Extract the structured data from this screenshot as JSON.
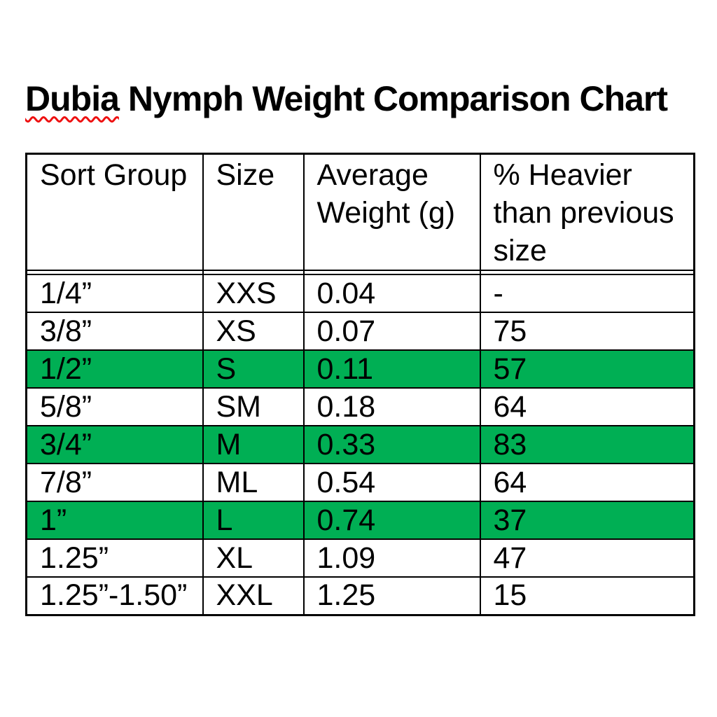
{
  "title": {
    "misspelled_word": "Dubia",
    "rest": "Nymph Weight Comparison Chart"
  },
  "table": {
    "columns": [
      "Sort Group",
      "Size",
      "Average Weight (g)",
      "% Heavier than previous size"
    ],
    "rows": [
      {
        "sort_group": "1/4”",
        "size": "XXS",
        "avg_weight": "0.04",
        "pct_heavier": "-",
        "highlighted": false
      },
      {
        "sort_group": "3/8”",
        "size": "XS",
        "avg_weight": "0.07",
        "pct_heavier": "75",
        "highlighted": false
      },
      {
        "sort_group": "1/2”",
        "size": "S",
        "avg_weight": "0.11",
        "pct_heavier": "57",
        "highlighted": true
      },
      {
        "sort_group": "5/8”",
        "size": "SM",
        "avg_weight": "0.18",
        "pct_heavier": "64",
        "highlighted": false
      },
      {
        "sort_group": "3/4”",
        "size": "M",
        "avg_weight": "0.33",
        "pct_heavier": "83",
        "highlighted": true
      },
      {
        "sort_group": "7/8”",
        "size": "ML",
        "avg_weight": "0.54",
        "pct_heavier": "64",
        "highlighted": false
      },
      {
        "sort_group": "1”",
        "size": "L",
        "avg_weight": "0.74",
        "pct_heavier": "37",
        "highlighted": true
      },
      {
        "sort_group": "1.25”",
        "size": "XL",
        "avg_weight": "1.09",
        "pct_heavier": "47",
        "highlighted": false
      },
      {
        "sort_group": "1.25”-1.50”",
        "size": "XXL",
        "avg_weight": "1.25",
        "pct_heavier": "15",
        "highlighted": false
      }
    ]
  },
  "colors": {
    "highlight_green": "#00AF54",
    "spellcheck_red": "#EE1111",
    "border_black": "#000000"
  },
  "chart_data": {
    "type": "table",
    "title": "Dubia Nymph Weight Comparison Chart",
    "columns": [
      "Sort Group",
      "Size",
      "Average Weight (g)",
      "% Heavier than previous size"
    ],
    "rows": [
      [
        "1/4”",
        "XXS",
        0.04,
        null
      ],
      [
        "3/8”",
        "XS",
        0.07,
        75
      ],
      [
        "1/2”",
        "S",
        0.11,
        57
      ],
      [
        "5/8”",
        "SM",
        0.18,
        64
      ],
      [
        "3/4”",
        "M",
        0.33,
        83
      ],
      [
        "7/8”",
        "ML",
        0.54,
        64
      ],
      [
        "1”",
        "L",
        0.74,
        37
      ],
      [
        "1.25”",
        "XL",
        1.09,
        47
      ],
      [
        "1.25”-1.50”",
        "XXL",
        1.25,
        15
      ]
    ],
    "highlighted_row_indices": [
      2,
      4,
      6
    ],
    "notes": "Rows highlighted in green; spell-check squiggle under the word Dubia in the title"
  }
}
